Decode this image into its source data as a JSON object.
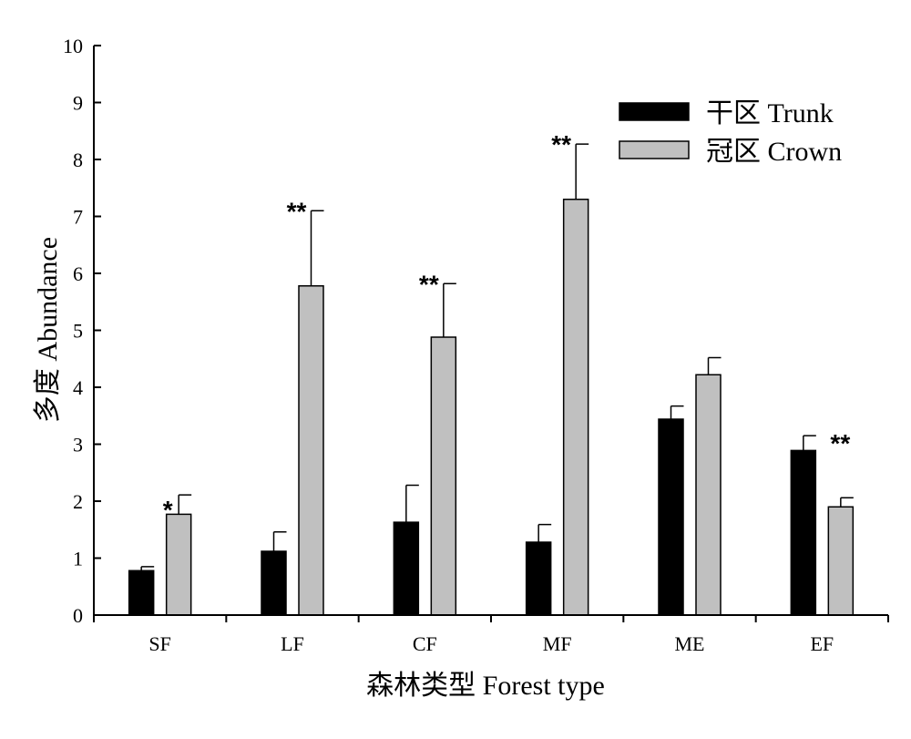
{
  "chart_data": {
    "type": "bar",
    "title": "",
    "xlabel": "森林类型  Forest type",
    "ylabel": "多度  Abundance",
    "categories": [
      "SF",
      "LF",
      "CF",
      "MF",
      "ME",
      "EF"
    ],
    "ylim": [
      0,
      10
    ],
    "yticks": [
      0,
      1,
      2,
      3,
      4,
      5,
      6,
      7,
      8,
      9,
      10
    ],
    "series": [
      {
        "name": "干区  Trunk",
        "color": "#000000",
        "values": [
          0.78,
          1.12,
          1.63,
          1.28,
          3.44,
          2.89
        ],
        "errors": [
          0.07,
          0.34,
          0.65,
          0.31,
          0.23,
          0.26
        ]
      },
      {
        "name": "冠区 Crown",
        "color": "#c0c0c0",
        "values": [
          1.77,
          5.78,
          4.88,
          7.3,
          4.22,
          1.9
        ],
        "errors": [
          0.34,
          1.32,
          0.94,
          0.97,
          0.3,
          0.16
        ]
      }
    ],
    "significance": [
      "*",
      "**",
      "**",
      "**",
      "",
      "**"
    ],
    "legend_position": "top-right",
    "grid": false
  }
}
